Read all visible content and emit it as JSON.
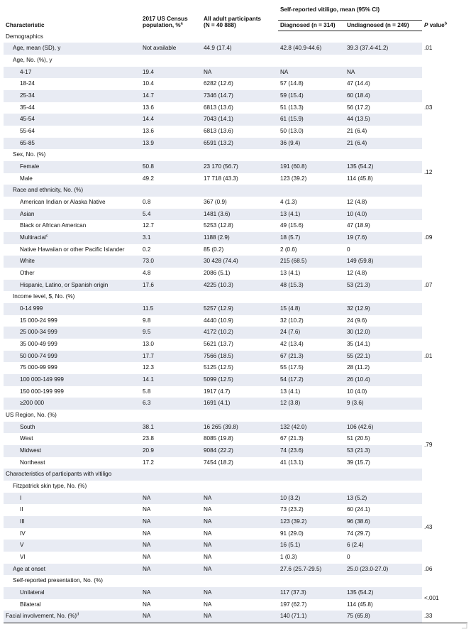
{
  "headers": {
    "characteristic": "Characteristic",
    "census_line1": "2017 US Census",
    "census_line2": "population, %",
    "census_sup": "a",
    "all_line1": "All adult participants",
    "all_line2": "(N = 40 888)",
    "vitiligo_group": "Self-reported vitiligo, mean (95% CI)",
    "diagnosed": "Diagnosed (n = 314)",
    "undiagnosed": "Undiagnosed (n = 249)",
    "pvalue_p": "P",
    "pvalue_rest": " value",
    "pvalue_sup": "b"
  },
  "rows": [
    {
      "label": "Demographics",
      "level": 0,
      "c1": "",
      "c2": "",
      "c3": "",
      "c4": ""
    },
    {
      "label": "Age, mean (SD), y",
      "level": 1,
      "c1": "Not available",
      "c2": "44.9 (17.4)",
      "c3": "42.8 (40.9-44.6)",
      "c4": "39.3 (37.4-41.2)",
      "p": ".01",
      "span": 1
    },
    {
      "label": "Age, No. (%), y",
      "level": 1,
      "c1": "",
      "c2": "",
      "c3": "",
      "c4": ""
    },
    {
      "label": "4-17",
      "level": 2,
      "c1": "19.4",
      "c2": "NA",
      "c3": "NA",
      "c4": "NA",
      "p": ".03",
      "span": 7
    },
    {
      "label": "18-24",
      "level": 2,
      "c1": "10.4",
      "c2": "6282 (12.6)",
      "c3": "57 (14.8)",
      "c4": "47 (14.4)"
    },
    {
      "label": "25-34",
      "level": 2,
      "c1": "14.7",
      "c2": "7346 (14.7)",
      "c3": "59 (15.4)",
      "c4": "60 (18.4)"
    },
    {
      "label": "35-44",
      "level": 2,
      "c1": "13.6",
      "c2": "6813 (13.6)",
      "c3": "51 (13.3)",
      "c4": "56 (17.2)"
    },
    {
      "label": "45-54",
      "level": 2,
      "c1": "14.4",
      "c2": "7043 (14.1)",
      "c3": "61 (15.9)",
      "c4": "44 (13.5)"
    },
    {
      "label": "55-64",
      "level": 2,
      "c1": "13.6",
      "c2": "6813 (13.6)",
      "c3": "50 (13.0)",
      "c4": "21 (6.4)"
    },
    {
      "label": "65-85",
      "level": 2,
      "c1": "13.9",
      "c2": "6591 (13.2)",
      "c3": "36 (9.4)",
      "c4": "21 (6.4)"
    },
    {
      "label": "Sex, No. (%)",
      "level": 1,
      "c1": "",
      "c2": "",
      "c3": "",
      "c4": ""
    },
    {
      "label": "Female",
      "level": 2,
      "c1": "50.8",
      "c2": "23 170 (56.7)",
      "c3": "191 (60.8)",
      "c4": "135 (54.2)",
      "p": ".12",
      "span": 2
    },
    {
      "label": "Male",
      "level": 2,
      "c1": "49.2",
      "c2": "17 718 (43.3)",
      "c3": "123 (39.2)",
      "c4": "114 (45.8)"
    },
    {
      "label": "Race and ethnicity, No. (%)",
      "level": 1,
      "c1": "",
      "c2": "",
      "c3": "",
      "c4": ""
    },
    {
      "label": "American Indian or Alaska Native",
      "level": 2,
      "c1": "0.8",
      "c2": "367 (0.9)",
      "c3": "4 (1.3)",
      "c4": "12 (4.8)",
      "p": ".09",
      "span": 7
    },
    {
      "label": "Asian",
      "level": 2,
      "c1": "5.4",
      "c2": "1481 (3.6)",
      "c3": "13 (4.1)",
      "c4": "10 (4.0)"
    },
    {
      "label": "Black or African American",
      "level": 2,
      "c1": "12.7",
      "c2": "5253 (12.8)",
      "c3": "49 (15.6)",
      "c4": "47 (18.9)"
    },
    {
      "label": "Multiracial",
      "label_sup": "c",
      "level": 2,
      "c1": "3.1",
      "c2": "1188 (2.9)",
      "c3": "18 (5.7)",
      "c4": "19 (7.6)"
    },
    {
      "label": "Native Hawaiian or other Pacific Islander",
      "level": 2,
      "c1": "0.2",
      "c2": "85 (0.2)",
      "c3": "2 (0.6)",
      "c4": "0"
    },
    {
      "label": "White",
      "level": 2,
      "c1": "73.0",
      "c2": "30 428 (74.4)",
      "c3": "215 (68.5)",
      "c4": "149 (59.8)"
    },
    {
      "label": "Other",
      "level": 2,
      "c1": "4.8",
      "c2": "2086 (5.1)",
      "c3": "13 (4.1)",
      "c4": "12 (4.8)"
    },
    {
      "label": "Hispanic, Latino, or Spanish origin",
      "level": 2,
      "c1": "17.6",
      "c2": "4225 (10.3)",
      "c3": "48 (15.3)",
      "c4": "53 (21.3)",
      "p": ".07",
      "span": 1
    },
    {
      "label": "Income level, $, No. (%)",
      "level": 1,
      "c1": "",
      "c2": "",
      "c3": "",
      "c4": ""
    },
    {
      "label": "0-14 999",
      "level": 2,
      "c1": "11.5",
      "c2": "5257 (12.9)",
      "c3": "15 (4.8)",
      "c4": "32 (12.9)",
      "p": ".01",
      "span": 9
    },
    {
      "label": "15 000-24 999",
      "level": 2,
      "c1": "9.8",
      "c2": "4440 (10.9)",
      "c3": "32 (10.2)",
      "c4": "24 (9.6)"
    },
    {
      "label": "25 000-34 999",
      "level": 2,
      "c1": "9.5",
      "c2": "4172 (10.2)",
      "c3": "24 (7.6)",
      "c4": "30 (12.0)"
    },
    {
      "label": "35 000-49 999",
      "level": 2,
      "c1": "13.0",
      "c2": "5621 (13.7)",
      "c3": "42 (13.4)",
      "c4": "35 (14.1)"
    },
    {
      "label": "50 000-74 999",
      "level": 2,
      "c1": "17.7",
      "c2": "7566 (18.5)",
      "c3": "67 (21.3)",
      "c4": "55 (22.1)"
    },
    {
      "label": "75 000-99 999",
      "level": 2,
      "c1": "12.3",
      "c2": "5125 (12.5)",
      "c3": "55 (17.5)",
      "c4": "28 (11.2)"
    },
    {
      "label": "100 000-149 999",
      "level": 2,
      "c1": "14.1",
      "c2": "5099 (12.5)",
      "c3": "54 (17.2)",
      "c4": "26 (10.4)"
    },
    {
      "label": "150 000-199 999",
      "level": 2,
      "c1": "5.8",
      "c2": "1917 (4.7)",
      "c3": "13 (4.1)",
      "c4": "10 (4.0)"
    },
    {
      "label": "≥200 000",
      "level": 2,
      "c1": "6.3",
      "c2": "1691 (4.1)",
      "c3": "12 (3.8)",
      "c4": "9 (3.6)"
    },
    {
      "label": "US Region, No. (%)",
      "level": 0,
      "c1": "",
      "c2": "",
      "c3": "",
      "c4": ""
    },
    {
      "label": "South",
      "level": 2,
      "c1": "38.1",
      "c2": "16 265 (39.8)",
      "c3": "132 (42.0)",
      "c4": "106 (42.6)",
      "p": ".79",
      "span": 4
    },
    {
      "label": "West",
      "level": 2,
      "c1": "23.8",
      "c2": "8085 (19.8)",
      "c3": "67 (21.3)",
      "c4": "51 (20.5)"
    },
    {
      "label": "Midwest",
      "level": 2,
      "c1": "20.9",
      "c2": "9084 (22.2)",
      "c3": "74 (23.6)",
      "c4": "53 (21.3)"
    },
    {
      "label": "Northeast",
      "level": 2,
      "c1": "17.2",
      "c2": "7454 (18.2)",
      "c3": "41 (13.1)",
      "c4": "39 (15.7)"
    },
    {
      "label": "Characteristics of participants with vitiligo",
      "level": 0,
      "c1": "",
      "c2": "",
      "c3": "",
      "c4": ""
    },
    {
      "label": "Fitzpatrick skin type, No. (%)",
      "level": 1,
      "c1": "",
      "c2": "",
      "c3": "",
      "c4": ""
    },
    {
      "label": "I",
      "level": 2,
      "c1": "NA",
      "c2": "NA",
      "c3": "10 (3.2)",
      "c4": "13 (5.2)",
      "p": ".43",
      "span": 6
    },
    {
      "label": "II",
      "level": 2,
      "c1": "NA",
      "c2": "NA",
      "c3": "73 (23.2)",
      "c4": "60 (24.1)"
    },
    {
      "label": "III",
      "level": 2,
      "c1": "NA",
      "c2": "NA",
      "c3": "123 (39.2)",
      "c4": "96 (38.6)"
    },
    {
      "label": "IV",
      "level": 2,
      "c1": "NA",
      "c2": "NA",
      "c3": "91 (29.0)",
      "c4": "74 (29.7)"
    },
    {
      "label": "V",
      "level": 2,
      "c1": "NA",
      "c2": "NA",
      "c3": "16 (5.1)",
      "c4": "6 (2.4)"
    },
    {
      "label": "VI",
      "level": 2,
      "c1": "NA",
      "c2": "NA",
      "c3": "1 (0.3)",
      "c4": "0"
    },
    {
      "label": "Age at onset",
      "level": 1,
      "c1": "NA",
      "c2": "NA",
      "c3": "27.6 (25.7-29.5)",
      "c4": "25.0 (23.0-27.0)",
      "p": ".06",
      "span": 1
    },
    {
      "label": "Self-reported presentation, No. (%)",
      "level": 1,
      "c1": "",
      "c2": "",
      "c3": "",
      "c4": ""
    },
    {
      "label": "Unilateral",
      "level": 2,
      "c1": "NA",
      "c2": "NA",
      "c3": "117 (37.3)",
      "c4": "135 (54.2)",
      "p": "<.001",
      "span": 2
    },
    {
      "label": "Bilateral",
      "level": 2,
      "c1": "NA",
      "c2": "NA",
      "c3": "197 (62.7)",
      "c4": "114 (45.8)"
    },
    {
      "label": "Facial involvement, No. (%)",
      "label_sup": "d",
      "level": 0,
      "c1": "NA",
      "c2": "NA",
      "c3": "140 (71.1)",
      "c4": "75 (65.8)",
      "p": ".33",
      "span": 1
    }
  ],
  "colors": {
    "row_shade": "#e8ebf3",
    "rule": "#222222"
  }
}
